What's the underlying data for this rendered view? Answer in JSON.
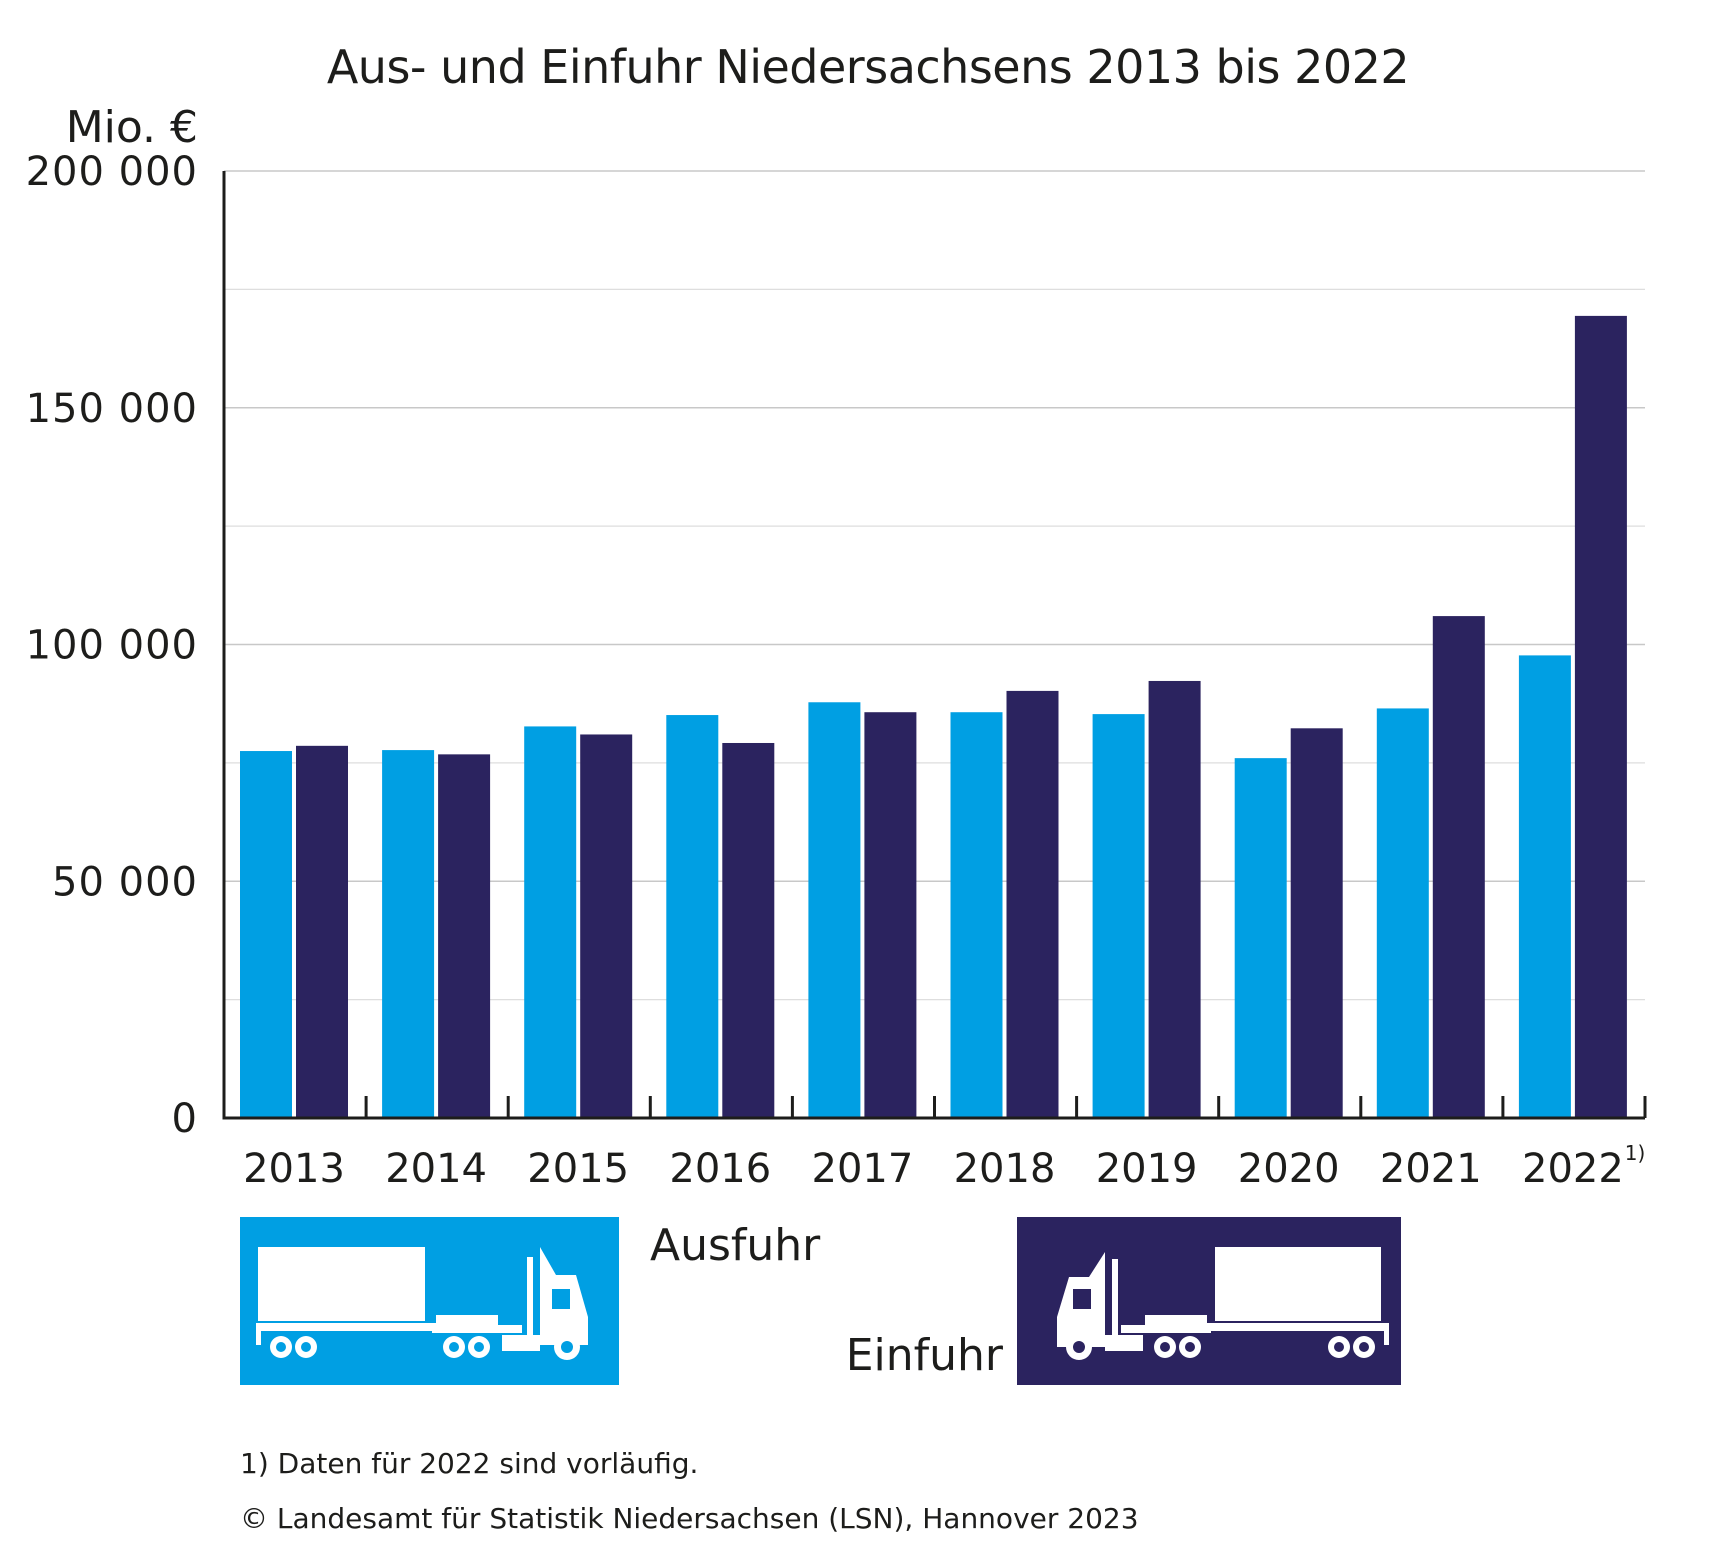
{
  "chart_data": {
    "type": "bar",
    "title": "Aus- und Einfuhr Niedersachsens 2013 bis 2022",
    "ylabel": "Mio. €",
    "xlabel": "",
    "ylim": [
      0,
      200000
    ],
    "yticks": [
      0,
      50000,
      100000,
      150000,
      200000
    ],
    "ytick_labels": [
      "0",
      "50 000",
      "100 000",
      "150 000",
      "200 000"
    ],
    "minor_gridlines": [
      25000,
      75000,
      125000,
      175000
    ],
    "grid": true,
    "categories": [
      "2013",
      "2014",
      "2015",
      "2016",
      "2017",
      "2018",
      "2019",
      "2020",
      "2021",
      "2022"
    ],
    "category_superscripts": [
      "",
      "",
      "",
      "",
      "",
      "",
      "",
      "",
      "",
      "1)"
    ],
    "series": [
      {
        "name": "Ausfuhr",
        "color": "#009fe3",
        "values": [
          77500,
          77700,
          82700,
          85100,
          87800,
          85700,
          85300,
          76000,
          86500,
          97700
        ]
      },
      {
        "name": "Einfuhr",
        "color": "#2b235f",
        "values": [
          78600,
          76800,
          81000,
          79200,
          85700,
          90200,
          92300,
          82300,
          106000,
          169400
        ]
      }
    ],
    "legend": {
      "placement": "bottom",
      "items": [
        {
          "label": "Ausfuhr",
          "icon": "truck-right-icon",
          "color": "#009fe3"
        },
        {
          "label": "Einfuhr",
          "icon": "truck-left-icon",
          "color": "#2b235f"
        }
      ]
    },
    "footnotes": [
      "1) Daten für 2022 sind vorläufig.",
      "© Landesamt für Statistik Niedersachsen (LSN), Hannover 2023"
    ]
  }
}
